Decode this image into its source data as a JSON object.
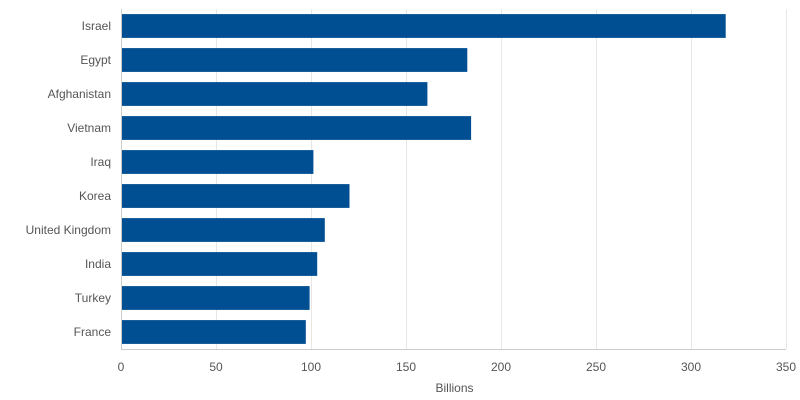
{
  "chart_data": {
    "type": "bar",
    "orientation": "horizontal",
    "categories": [
      "Israel",
      "Egypt",
      "Afghanistan",
      "Vietnam",
      "Iraq",
      "Korea",
      "United Kingdom",
      "India",
      "Turkey",
      "France"
    ],
    "values": [
      318,
      182,
      161,
      184,
      101,
      120,
      107,
      103,
      99,
      97
    ],
    "title": "",
    "xlabel": "Billions",
    "ylabel": "",
    "xlim": [
      0,
      350
    ],
    "xticks": [
      0,
      50,
      100,
      150,
      200,
      250,
      300,
      350
    ],
    "grid": true,
    "legend": "none",
    "colors": {
      "bar": "#004f92",
      "grid": "#e6e6e6",
      "text": "#555555"
    }
  }
}
